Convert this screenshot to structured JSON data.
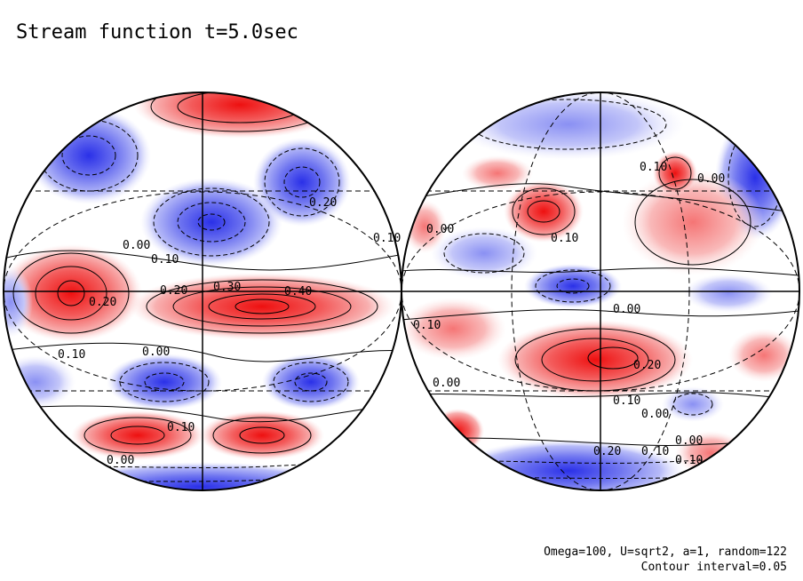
{
  "title": "Stream function t=5.0sec",
  "footer": {
    "params": "Omega=100, U=sqrt2, a=1, random=122",
    "interval": "Contour interval=0.05"
  },
  "colors": {
    "positive": "#e8202a",
    "negative": "#2230e0",
    "background": "#ffffff"
  },
  "left_globe_labels": [
    "0.00",
    "0.10",
    "0.20",
    "0.30",
    "0.40",
    "0.20",
    "0.10",
    "0.00",
    "0.10",
    "0.00",
    "0.20",
    "0.10"
  ],
  "right_globe_labels": [
    "0.00",
    "0.10",
    "0.10",
    "0.00",
    "0.10",
    "0.00",
    "0.20",
    "0.10",
    "0.00",
    "0.00",
    "0.20",
    "0.10",
    "0.00",
    "0.10"
  ]
}
